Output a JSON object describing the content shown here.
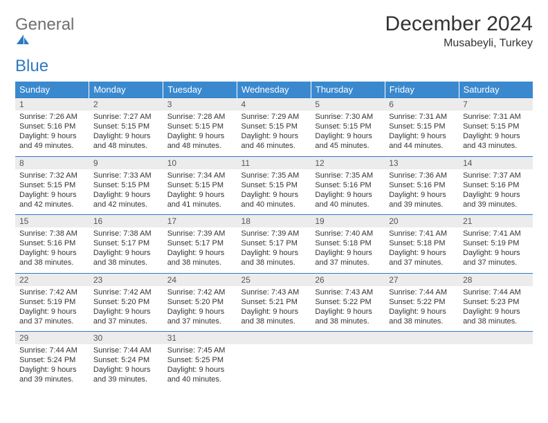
{
  "logo": {
    "word1": "General",
    "word2": "Blue"
  },
  "colors": {
    "header_bg": "#3a89cf",
    "rule": "#2f78c3",
    "daynum_bg": "#ececec",
    "text": "#333333",
    "logo_gray": "#6f6f6f",
    "logo_blue": "#2f78c3"
  },
  "title": "December 2024",
  "location": "Musabeyli, Turkey",
  "day_headers": [
    "Sunday",
    "Monday",
    "Tuesday",
    "Wednesday",
    "Thursday",
    "Friday",
    "Saturday"
  ],
  "weeks": [
    [
      {
        "n": "1",
        "sr": "Sunrise: 7:26 AM",
        "ss": "Sunset: 5:16 PM",
        "dl": "Daylight: 9 hours and 49 minutes."
      },
      {
        "n": "2",
        "sr": "Sunrise: 7:27 AM",
        "ss": "Sunset: 5:15 PM",
        "dl": "Daylight: 9 hours and 48 minutes."
      },
      {
        "n": "3",
        "sr": "Sunrise: 7:28 AM",
        "ss": "Sunset: 5:15 PM",
        "dl": "Daylight: 9 hours and 48 minutes."
      },
      {
        "n": "4",
        "sr": "Sunrise: 7:29 AM",
        "ss": "Sunset: 5:15 PM",
        "dl": "Daylight: 9 hours and 46 minutes."
      },
      {
        "n": "5",
        "sr": "Sunrise: 7:30 AM",
        "ss": "Sunset: 5:15 PM",
        "dl": "Daylight: 9 hours and 45 minutes."
      },
      {
        "n": "6",
        "sr": "Sunrise: 7:31 AM",
        "ss": "Sunset: 5:15 PM",
        "dl": "Daylight: 9 hours and 44 minutes."
      },
      {
        "n": "7",
        "sr": "Sunrise: 7:31 AM",
        "ss": "Sunset: 5:15 PM",
        "dl": "Daylight: 9 hours and 43 minutes."
      }
    ],
    [
      {
        "n": "8",
        "sr": "Sunrise: 7:32 AM",
        "ss": "Sunset: 5:15 PM",
        "dl": "Daylight: 9 hours and 42 minutes."
      },
      {
        "n": "9",
        "sr": "Sunrise: 7:33 AM",
        "ss": "Sunset: 5:15 PM",
        "dl": "Daylight: 9 hours and 42 minutes."
      },
      {
        "n": "10",
        "sr": "Sunrise: 7:34 AM",
        "ss": "Sunset: 5:15 PM",
        "dl": "Daylight: 9 hours and 41 minutes."
      },
      {
        "n": "11",
        "sr": "Sunrise: 7:35 AM",
        "ss": "Sunset: 5:15 PM",
        "dl": "Daylight: 9 hours and 40 minutes."
      },
      {
        "n": "12",
        "sr": "Sunrise: 7:35 AM",
        "ss": "Sunset: 5:16 PM",
        "dl": "Daylight: 9 hours and 40 minutes."
      },
      {
        "n": "13",
        "sr": "Sunrise: 7:36 AM",
        "ss": "Sunset: 5:16 PM",
        "dl": "Daylight: 9 hours and 39 minutes."
      },
      {
        "n": "14",
        "sr": "Sunrise: 7:37 AM",
        "ss": "Sunset: 5:16 PM",
        "dl": "Daylight: 9 hours and 39 minutes."
      }
    ],
    [
      {
        "n": "15",
        "sr": "Sunrise: 7:38 AM",
        "ss": "Sunset: 5:16 PM",
        "dl": "Daylight: 9 hours and 38 minutes."
      },
      {
        "n": "16",
        "sr": "Sunrise: 7:38 AM",
        "ss": "Sunset: 5:17 PM",
        "dl": "Daylight: 9 hours and 38 minutes."
      },
      {
        "n": "17",
        "sr": "Sunrise: 7:39 AM",
        "ss": "Sunset: 5:17 PM",
        "dl": "Daylight: 9 hours and 38 minutes."
      },
      {
        "n": "18",
        "sr": "Sunrise: 7:39 AM",
        "ss": "Sunset: 5:17 PM",
        "dl": "Daylight: 9 hours and 38 minutes."
      },
      {
        "n": "19",
        "sr": "Sunrise: 7:40 AM",
        "ss": "Sunset: 5:18 PM",
        "dl": "Daylight: 9 hours and 37 minutes."
      },
      {
        "n": "20",
        "sr": "Sunrise: 7:41 AM",
        "ss": "Sunset: 5:18 PM",
        "dl": "Daylight: 9 hours and 37 minutes."
      },
      {
        "n": "21",
        "sr": "Sunrise: 7:41 AM",
        "ss": "Sunset: 5:19 PM",
        "dl": "Daylight: 9 hours and 37 minutes."
      }
    ],
    [
      {
        "n": "22",
        "sr": "Sunrise: 7:42 AM",
        "ss": "Sunset: 5:19 PM",
        "dl": "Daylight: 9 hours and 37 minutes."
      },
      {
        "n": "23",
        "sr": "Sunrise: 7:42 AM",
        "ss": "Sunset: 5:20 PM",
        "dl": "Daylight: 9 hours and 37 minutes."
      },
      {
        "n": "24",
        "sr": "Sunrise: 7:42 AM",
        "ss": "Sunset: 5:20 PM",
        "dl": "Daylight: 9 hours and 37 minutes."
      },
      {
        "n": "25",
        "sr": "Sunrise: 7:43 AM",
        "ss": "Sunset: 5:21 PM",
        "dl": "Daylight: 9 hours and 38 minutes."
      },
      {
        "n": "26",
        "sr": "Sunrise: 7:43 AM",
        "ss": "Sunset: 5:22 PM",
        "dl": "Daylight: 9 hours and 38 minutes."
      },
      {
        "n": "27",
        "sr": "Sunrise: 7:44 AM",
        "ss": "Sunset: 5:22 PM",
        "dl": "Daylight: 9 hours and 38 minutes."
      },
      {
        "n": "28",
        "sr": "Sunrise: 7:44 AM",
        "ss": "Sunset: 5:23 PM",
        "dl": "Daylight: 9 hours and 38 minutes."
      }
    ],
    [
      {
        "n": "29",
        "sr": "Sunrise: 7:44 AM",
        "ss": "Sunset: 5:24 PM",
        "dl": "Daylight: 9 hours and 39 minutes."
      },
      {
        "n": "30",
        "sr": "Sunrise: 7:44 AM",
        "ss": "Sunset: 5:24 PM",
        "dl": "Daylight: 9 hours and 39 minutes."
      },
      {
        "n": "31",
        "sr": "Sunrise: 7:45 AM",
        "ss": "Sunset: 5:25 PM",
        "dl": "Daylight: 9 hours and 40 minutes."
      },
      {
        "empty": true
      },
      {
        "empty": true
      },
      {
        "empty": true
      },
      {
        "empty": true
      }
    ]
  ]
}
